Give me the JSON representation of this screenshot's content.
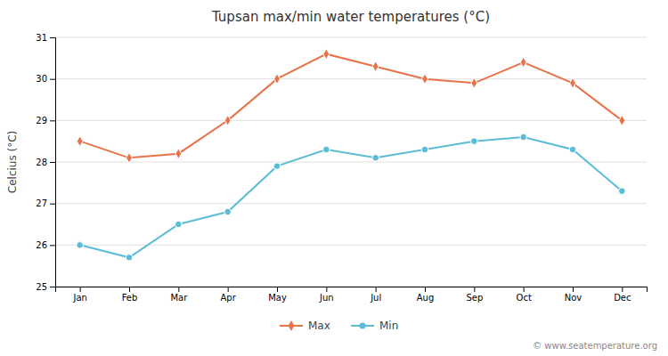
{
  "chart_data": {
    "type": "line",
    "title": "Tupsan max/min water temperatures (°C)",
    "ylabel": "Celcius (°C)",
    "categories": [
      "Jan",
      "Feb",
      "Mar",
      "Apr",
      "May",
      "Jun",
      "Jul",
      "Aug",
      "Sep",
      "Oct",
      "Nov",
      "Dec"
    ],
    "series": [
      {
        "name": "Max",
        "color": "#E8724A",
        "marker": "diamond",
        "values": [
          28.5,
          28.1,
          28.2,
          29.0,
          30.0,
          30.6,
          30.3,
          30.0,
          29.9,
          30.4,
          29.9,
          29.0
        ]
      },
      {
        "name": "Min",
        "color": "#5BBCD6",
        "marker": "circle",
        "values": [
          26.0,
          25.7,
          26.5,
          26.8,
          27.9,
          28.3,
          28.1,
          28.3,
          28.5,
          28.6,
          28.3,
          27.3
        ]
      }
    ],
    "ylim": [
      25,
      31
    ],
    "yticks": [
      25,
      26,
      27,
      28,
      29,
      30,
      31
    ],
    "grid": true,
    "legend": "bottom",
    "annotations": [
      "© www.seatemperature.org"
    ]
  }
}
